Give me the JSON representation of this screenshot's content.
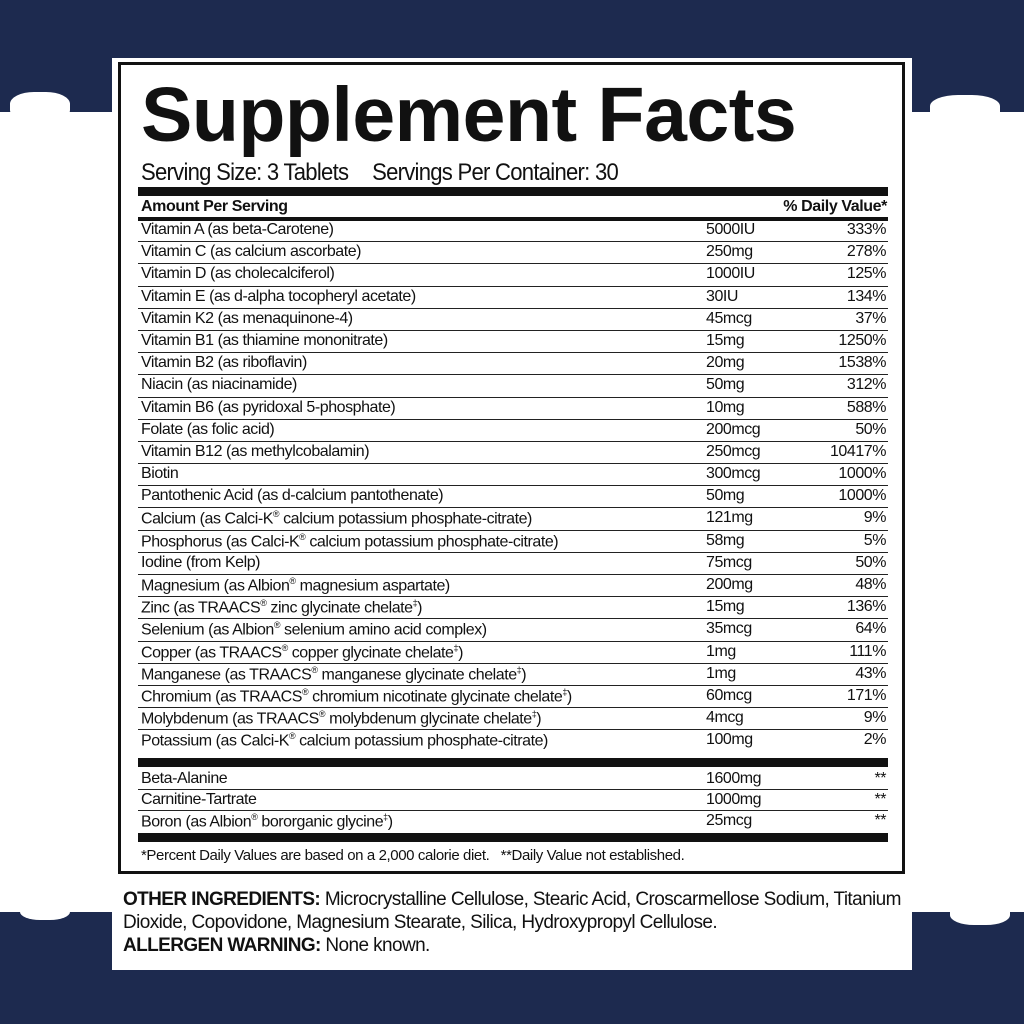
{
  "colors": {
    "background": "#1d2a4f",
    "label_bg": "#ffffff",
    "text": "#111111"
  },
  "title": "Supplement Facts",
  "serving_size": "Serving Size: 3 Tablets",
  "servings_per_container": "Servings Per Container: 30",
  "header": {
    "amount": "Amount Per Serving",
    "dv": "% Daily Value*"
  },
  "nutrients": [
    {
      "name": "Vitamin A (as beta-Carotene)",
      "amount": "5000IU",
      "dv": "333%"
    },
    {
      "name": "Vitamin C (as calcium ascorbate)",
      "amount": "250mg",
      "dv": "278%"
    },
    {
      "name": "Vitamin D (as cholecalciferol)",
      "amount": "1000IU",
      "dv": "125%"
    },
    {
      "name": "Vitamin E (as d-alpha tocopheryl acetate)",
      "amount": "30IU",
      "dv": "134%"
    },
    {
      "name": "Vitamin K2 (as menaquinone-4)",
      "amount": "45mcg",
      "dv": "37%"
    },
    {
      "name": "Vitamin B1 (as thiamine mononitrate)",
      "amount": "15mg",
      "dv": "1250%"
    },
    {
      "name": "Vitamin B2 (as riboflavin)",
      "amount": "20mg",
      "dv": "1538%"
    },
    {
      "name": "Niacin (as niacinamide)",
      "amount": "50mg",
      "dv": "312%"
    },
    {
      "name": "Vitamin B6 (as pyridoxal 5-phosphate)",
      "amount": "10mg",
      "dv": "588%"
    },
    {
      "name": "Folate (as folic acid)",
      "amount": "200mcg",
      "dv": "50%"
    },
    {
      "name": "Vitamin B12 (as methylcobalamin)",
      "amount": "250mcg",
      "dv": "10417%"
    },
    {
      "name": "Biotin",
      "amount": "300mcg",
      "dv": "1000%"
    },
    {
      "name": "Pantothenic Acid (as d-calcium pantothenate)",
      "amount": "50mg",
      "dv": "1000%"
    },
    {
      "name": "Calcium (as Calci-K® calcium potassium phosphate-citrate)",
      "amount": "121mg",
      "dv": "9%"
    },
    {
      "name": "Phosphorus (as Calci-K® calcium potassium phosphate-citrate)",
      "amount": "58mg",
      "dv": "5%"
    },
    {
      "name": "Iodine (from Kelp)",
      "amount": "75mcg",
      "dv": "50%"
    },
    {
      "name": "Magnesium (as Albion® magnesium aspartate)",
      "amount": "200mg",
      "dv": "48%"
    },
    {
      "name": "Zinc (as TRAACS® zinc glycinate chelate‡)",
      "amount": "15mg",
      "dv": "136%"
    },
    {
      "name": "Selenium (as Albion® selenium amino acid complex)",
      "amount": "35mcg",
      "dv": "64%"
    },
    {
      "name": "Copper (as TRAACS® copper glycinate chelate‡)",
      "amount": "1mg",
      "dv": "111%"
    },
    {
      "name": "Manganese (as TRAACS® manganese glycinate chelate‡)",
      "amount": "1mg",
      "dv": "43%"
    },
    {
      "name": "Chromium (as TRAACS® chromium nicotinate glycinate chelate‡)",
      "amount": "60mcg",
      "dv": "171%"
    },
    {
      "name": "Molybdenum (as TRAACS® molybdenum glycinate chelate‡)",
      "amount": "4mcg",
      "dv": "9%"
    },
    {
      "name": "Potassium (as Calci-K® calcium potassium phosphate-citrate)",
      "amount": "100mg",
      "dv": "2%"
    }
  ],
  "other_nutrients": [
    {
      "name": "Beta-Alanine",
      "amount": "1600mg",
      "dv": "**"
    },
    {
      "name": "Carnitine-Tartrate",
      "amount": "1000mg",
      "dv": "**"
    },
    {
      "name": "Boron (as Albion® bororganic glycine‡)",
      "amount": "25mcg",
      "dv": "**"
    }
  ],
  "footnote": "*Percent Daily Values are based on a 2,000 calorie diet.   **Daily Value not established.",
  "other_ingredients": {
    "label": "OTHER INGREDIENTS:",
    "text": " Microcrystalline Cellulose, Stearic Acid, Croscarmellose Sodium, Titanium Dioxide, Copovidone, Magnesium Stearate, Silica, Hydroxypropyl Cellulose."
  },
  "allergen": {
    "label": "ALLERGEN WARNING:",
    "text": " None known."
  }
}
